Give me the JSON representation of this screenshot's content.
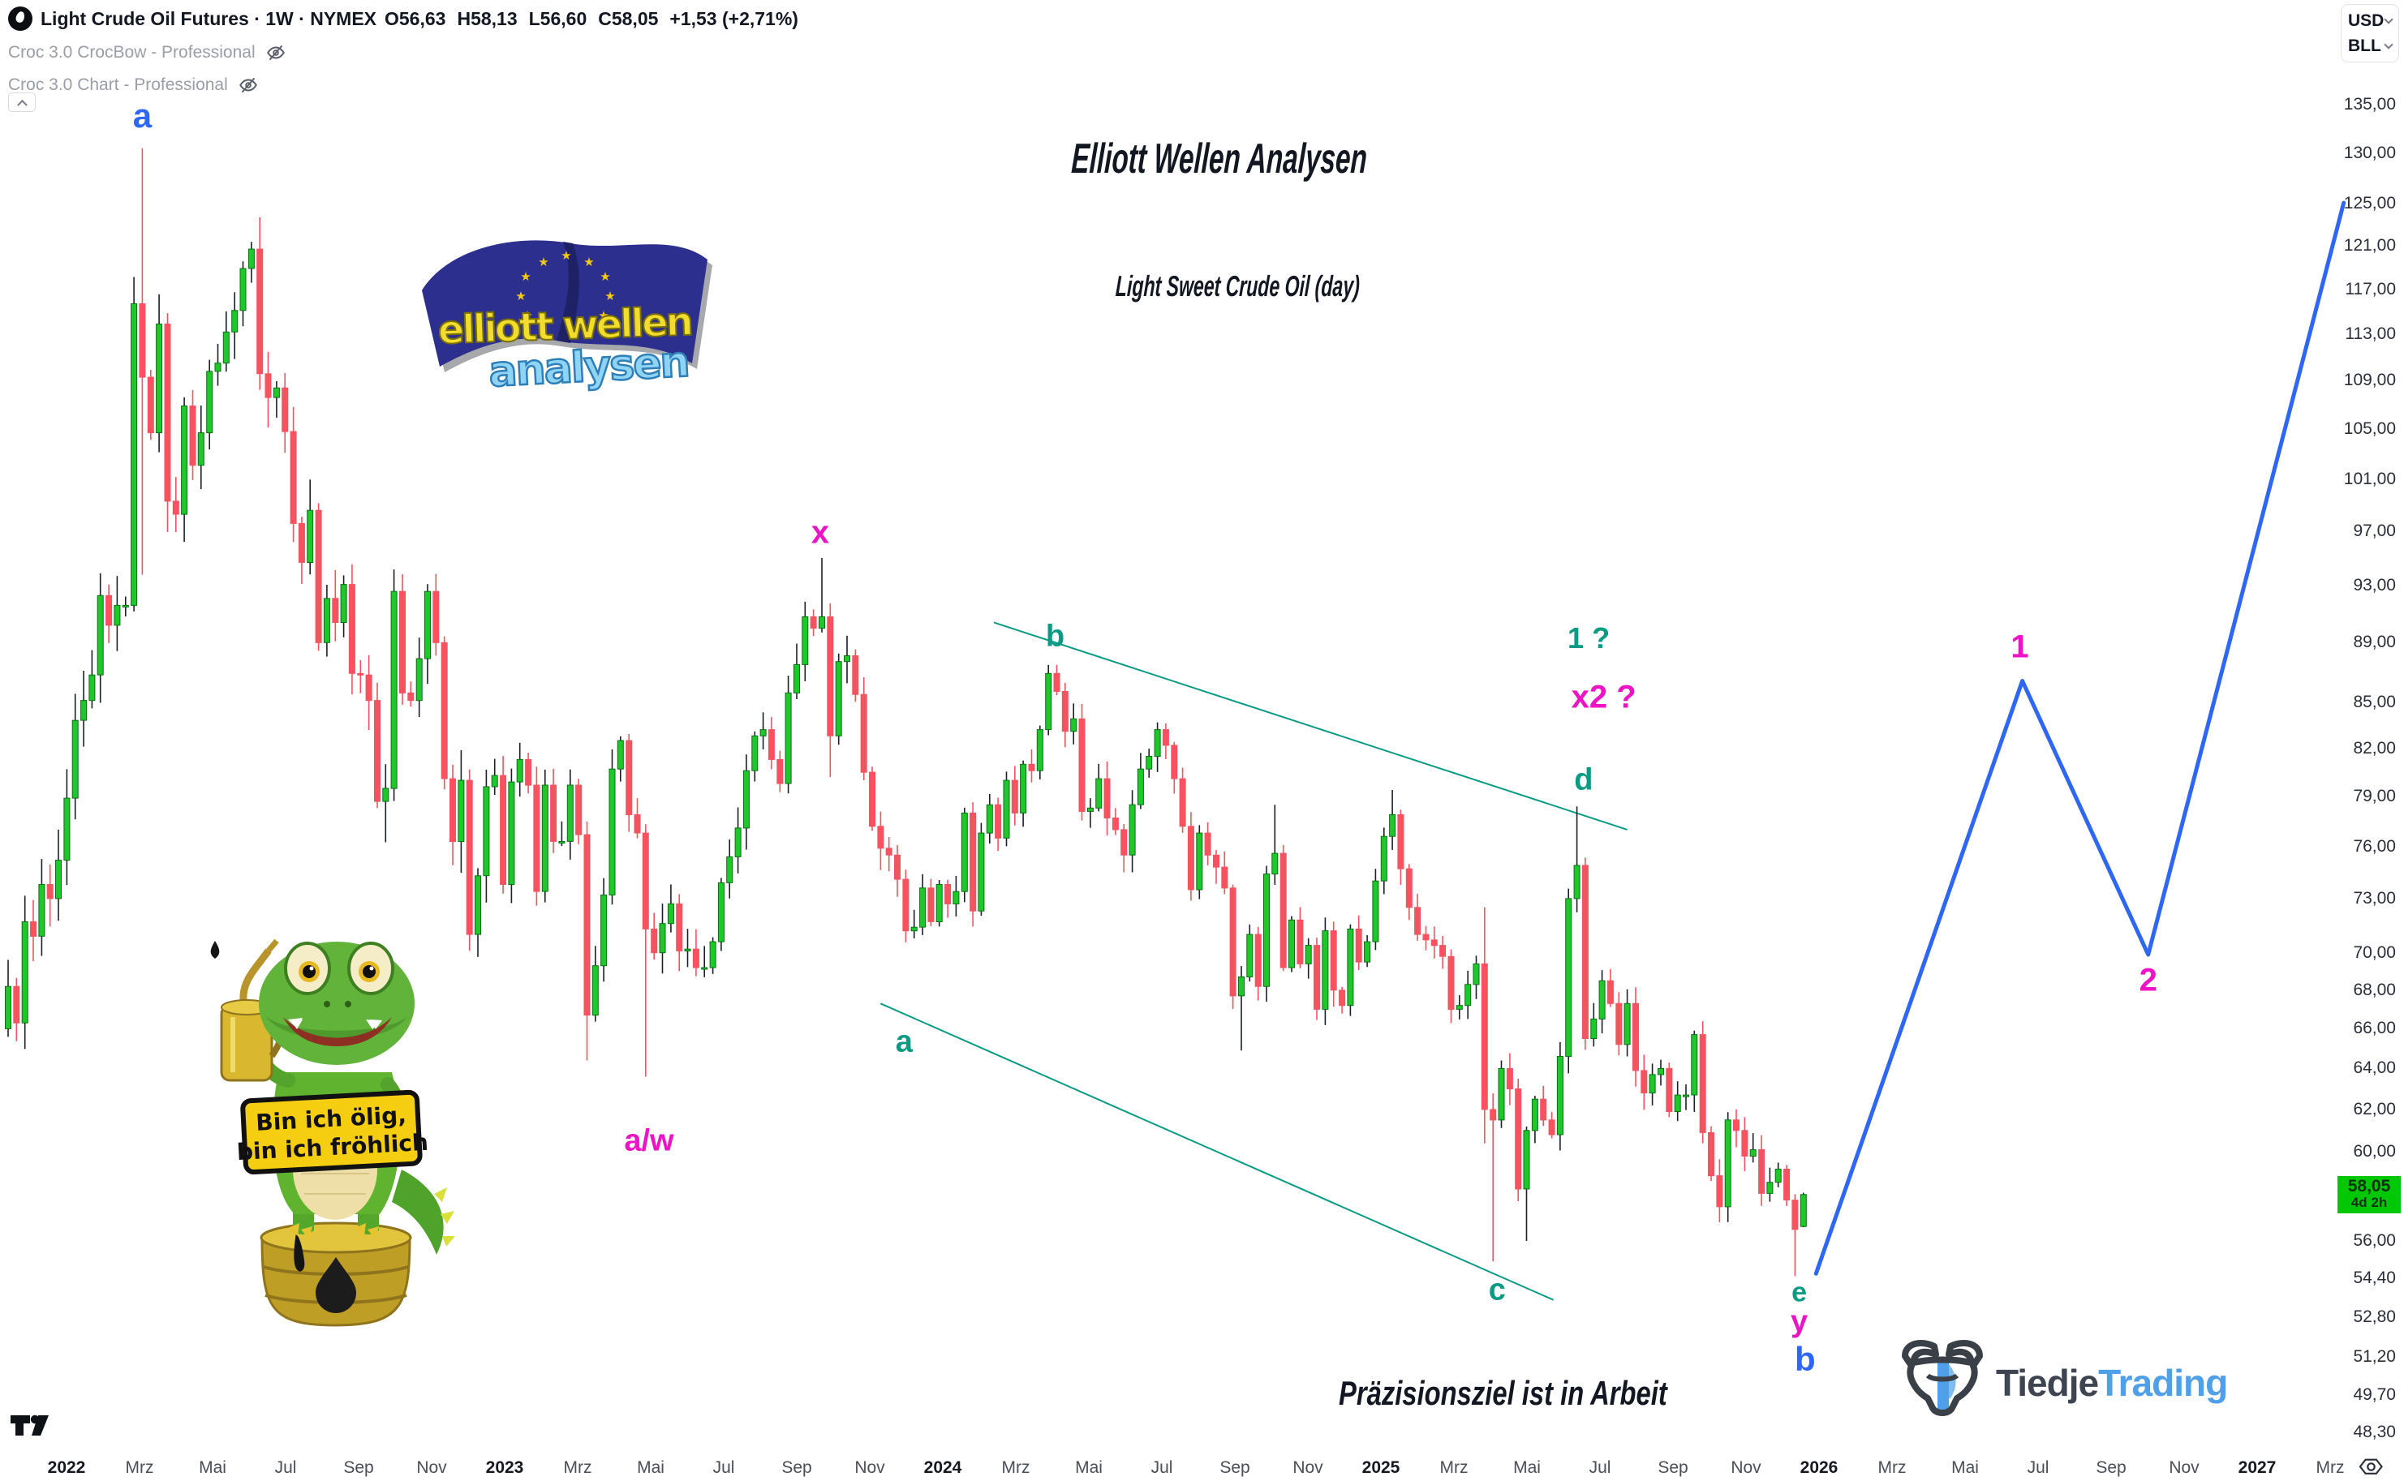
{
  "legend": {
    "title": "Light Crude Oil Futures · 1W · NYMEX",
    "ohlc": {
      "o": "O56,63",
      "h": "H58,13",
      "l": "L56,60",
      "c": "C58,05",
      "chg": "+1,53 (+2,71%)"
    },
    "indicator1": "Croc 3.0 CrocBow - Professional",
    "indicator2": "Croc 3.0 Chart - Professional"
  },
  "currency_selector": {
    "top": "USD",
    "bottom": "BLL"
  },
  "titles": {
    "main": "Elliott Wellen Analysen",
    "subtitle": "Light Sweet Crude Oil (day)",
    "status": "Präzisionsziel ist in Arbeit"
  },
  "branding": {
    "eu_logo_line1": "elliott wellen",
    "eu_logo_line2": "analysen",
    "tiedje_dark": "Tiedje",
    "tiedje_light": "Trading",
    "mascot_sign_line1": "Bin ich ölig,",
    "mascot_sign_line2": "bin ich fröhlich"
  },
  "chart_data": {
    "type": "candlestick",
    "symbol": "Light Crude Oil Futures",
    "timeframe": "1W",
    "exchange": "NYMEX",
    "scale": "logarithmic",
    "grid": false,
    "price_axis": {
      "ticks": [
        {
          "label": "135,00",
          "price": 135
        },
        {
          "label": "130,00",
          "price": 130
        },
        {
          "label": "125,00",
          "price": 125
        },
        {
          "label": "121,00",
          "price": 121
        },
        {
          "label": "117,00",
          "price": 117
        },
        {
          "label": "113,00",
          "price": 113
        },
        {
          "label": "109,00",
          "price": 109
        },
        {
          "label": "105,00",
          "price": 105
        },
        {
          "label": "101,00",
          "price": 101
        },
        {
          "label": "97,00",
          "price": 97
        },
        {
          "label": "93,00",
          "price": 93
        },
        {
          "label": "89,00",
          "price": 89
        },
        {
          "label": "85,00",
          "price": 85
        },
        {
          "label": "82,00",
          "price": 82
        },
        {
          "label": "79,00",
          "price": 79
        },
        {
          "label": "76,00",
          "price": 76
        },
        {
          "label": "73,00",
          "price": 73
        },
        {
          "label": "70,00",
          "price": 70
        },
        {
          "label": "68,00",
          "price": 68
        },
        {
          "label": "66,00",
          "price": 66
        },
        {
          "label": "64,00",
          "price": 64
        },
        {
          "label": "62,00",
          "price": 62
        },
        {
          "label": "60,00",
          "price": 60
        },
        {
          "label": "56,00",
          "price": 56
        },
        {
          "label": "54,40",
          "price": 54.4
        },
        {
          "label": "52,80",
          "price": 52.8
        },
        {
          "label": "51,20",
          "price": 51.2
        },
        {
          "label": "49,70",
          "price": 49.7
        },
        {
          "label": "48,30",
          "price": 48.3
        }
      ],
      "badge": {
        "price": 58.05,
        "price_label": "58,05",
        "countdown": "4d 2h"
      }
    },
    "time_axis": {
      "labels": [
        "2022",
        "Mrz",
        "Mai",
        "Jul",
        "Sep",
        "Nov",
        "2023",
        "Mrz",
        "Mai",
        "Jul",
        "Sep",
        "Nov",
        "2024",
        "Mrz",
        "Mai",
        "Jul",
        "Sep",
        "Nov",
        "2025",
        "Mrz",
        "Mai",
        "Jul",
        "Sep",
        "Nov",
        "2026",
        "Mrz",
        "Mai",
        "Jul",
        "Sep",
        "Nov",
        "2027",
        "Mrz"
      ]
    },
    "first_open": 66.0,
    "weekly_closes": [
      68.2,
      66.3,
      71.7,
      70.9,
      73.8,
      73.0,
      75.2,
      78.9,
      83.8,
      85.1,
      86.8,
      92.3,
      90.2,
      91.6,
      91.6,
      115.7,
      109.3,
      104.7,
      113.9,
      99.3,
      98.3,
      106.9,
      102.1,
      104.7,
      109.8,
      110.5,
      113.2,
      115.1,
      118.9,
      120.7,
      109.6,
      107.6,
      108.4,
      104.8,
      97.6,
      94.7,
      98.6,
      89.0,
      92.1,
      90.4,
      93.1,
      86.9,
      86.8,
      85.1,
      78.7,
      79.5,
      92.6,
      85.6,
      85.1,
      87.9,
      92.6,
      89.0,
      80.1,
      76.3,
      80.0,
      71.0,
      74.3,
      79.6,
      80.3,
      73.8,
      79.9,
      81.3,
      79.7,
      73.4,
      79.7,
      76.3,
      76.3,
      79.7,
      76.7,
      66.7,
      69.3,
      73.2,
      80.7,
      82.5,
      77.9,
      76.8,
      71.3,
      70.0,
      71.6,
      72.7,
      70.1,
      70.2,
      69.2,
      69.2,
      70.6,
      73.9,
      75.4,
      77.1,
      80.6,
      82.8,
      83.2,
      81.3,
      79.8,
      85.6,
      87.5,
      90.8,
      90.0,
      90.8,
      82.8,
      87.7,
      88.1,
      85.5,
      80.5,
      77.2,
      75.9,
      75.5,
      74.1,
      71.2,
      71.4,
      73.6,
      71.7,
      73.8,
      72.7,
      73.4,
      78.0,
      72.3,
      76.8,
      78.5,
      76.5,
      80.0,
      78.0,
      81.0,
      80.6,
      83.2,
      86.9,
      85.7,
      83.1,
      83.9,
      78.1,
      78.3,
      80.1,
      77.7,
      77.0,
      75.5,
      78.5,
      80.7,
      81.5,
      83.2,
      82.2,
      80.1,
      77.2,
      73.5,
      76.8,
      75.5,
      74.8,
      73.6,
      67.7,
      68.7,
      71.0,
      68.2,
      74.4,
      75.6,
      69.2,
      71.8,
      69.4,
      70.4,
      67.0,
      71.2,
      68.0,
      67.2,
      71.3,
      69.5,
      70.6,
      74.0,
      76.6,
      77.9,
      74.7,
      72.5,
      71.0,
      70.7,
      70.4,
      69.8,
      67.0,
      67.2,
      68.3,
      69.4,
      62.0,
      61.5,
      64.0,
      63.0,
      58.3,
      61.0,
      62.5,
      61.5,
      60.8,
      64.6,
      73.0,
      74.9,
      65.5,
      66.5,
      68.5,
      67.3,
      65.2,
      67.3,
      63.9,
      62.8,
      63.7,
      64.0,
      61.9,
      62.7,
      62.7,
      65.7,
      60.9,
      58.9,
      57.5,
      61.5,
      61.0,
      59.8,
      60.1,
      58.1,
      58.6,
      59.2,
      57.8,
      56.5,
      58.05
    ],
    "overrides": {
      "16": {
        "h": 130.5,
        "l": 93.8
      },
      "30": {
        "h": 123.7
      },
      "45": {
        "l": 76.25
      },
      "55": {
        "l": 70.1
      },
      "69": {
        "l": 64.4
      },
      "76": {
        "l": 63.6
      },
      "97": {
        "h": 95.03
      },
      "98": {
        "l": 80.2
      },
      "147": {
        "l": 64.9
      },
      "151": {
        "h": 78.5
      },
      "165": {
        "h": 79.4
      },
      "176": {
        "h": 72.5,
        "l": 60.4
      },
      "177": {
        "l": 55.12
      },
      "181": {
        "l": 56.0
      },
      "187": {
        "h": 78.4
      },
      "201": {
        "h": 65.9
      },
      "213": {
        "l": 54.5
      },
      "214": {
        "o": 56.63,
        "h": 58.13,
        "l": 56.6,
        "c": 58.05
      }
    },
    "wave_labels": [
      {
        "t": "a",
        "c": "blue",
        "i": 16,
        "p": 133.8,
        "s": 42
      },
      {
        "t": "x",
        "c": "magenta",
        "i": 96.8,
        "p": 96.9,
        "s": 40
      },
      {
        "t": "b",
        "c": "teal",
        "i": 124.8,
        "p": 89.4,
        "s": 38
      },
      {
        "t": "a",
        "c": "teal",
        "i": 106.8,
        "p": 65.3,
        "s": 38
      },
      {
        "t": "a/w",
        "c": "magenta",
        "i": 76.4,
        "p": 60.5,
        "s": 38
      },
      {
        "t": "1 ?",
        "c": "teal",
        "i": 188.4,
        "p": 89.3,
        "s": 36
      },
      {
        "t": "x2 ?",
        "c": "magenta",
        "i": 190.2,
        "p": 85.3,
        "s": 40
      },
      {
        "t": "d",
        "c": "teal",
        "i": 187.8,
        "p": 80.0,
        "s": 38
      },
      {
        "t": "c",
        "c": "teal",
        "i": 177.5,
        "p": 53.9,
        "s": 38
      },
      {
        "t": "e",
        "c": "teal",
        "i": 213.5,
        "p": 53.8,
        "s": 34
      },
      {
        "t": "y",
        "c": "magenta",
        "i": 213.5,
        "p": 52.6,
        "s": 38
      },
      {
        "t": "b",
        "c": "blue",
        "i": 214.2,
        "p": 51.1,
        "s": 42
      },
      {
        "t": "1",
        "c": "magenta",
        "i": 239.8,
        "p": 88.7,
        "s": 40
      },
      {
        "t": "2",
        "c": "magenta",
        "i": 255.1,
        "p": 68.5,
        "s": 40
      }
    ],
    "projection": {
      "points": [
        {
          "i": 215.5,
          "p": 54.6
        },
        {
          "i": 240.1,
          "p": 86.4
        },
        {
          "i": 255.1,
          "p": 69.9
        },
        {
          "i": 278.4,
          "p": 125.1
        }
      ]
    },
    "channels": [
      {
        "i1": 117.5,
        "p1": 90.4,
        "i2": 193.0,
        "p2": 77.0
      },
      {
        "i1": 104.0,
        "p1": 67.3,
        "i2": 184.2,
        "p2": 53.5
      }
    ],
    "colors": {
      "up": "#1EC82A",
      "up_border": "#0A7013",
      "down": "#F7525F",
      "wick_up": "#1B1F2A",
      "wick_down": "#F7525F",
      "teal": "#0A9B84",
      "magenta": "#EE13C5",
      "blue": "#2E66F6",
      "projection": "#2E66F6",
      "title_pink": "#F43BC9",
      "subtitle_blue": "#2F62F1",
      "status_gray": "#9BA0A8",
      "badge_green": "#00C807"
    }
  }
}
